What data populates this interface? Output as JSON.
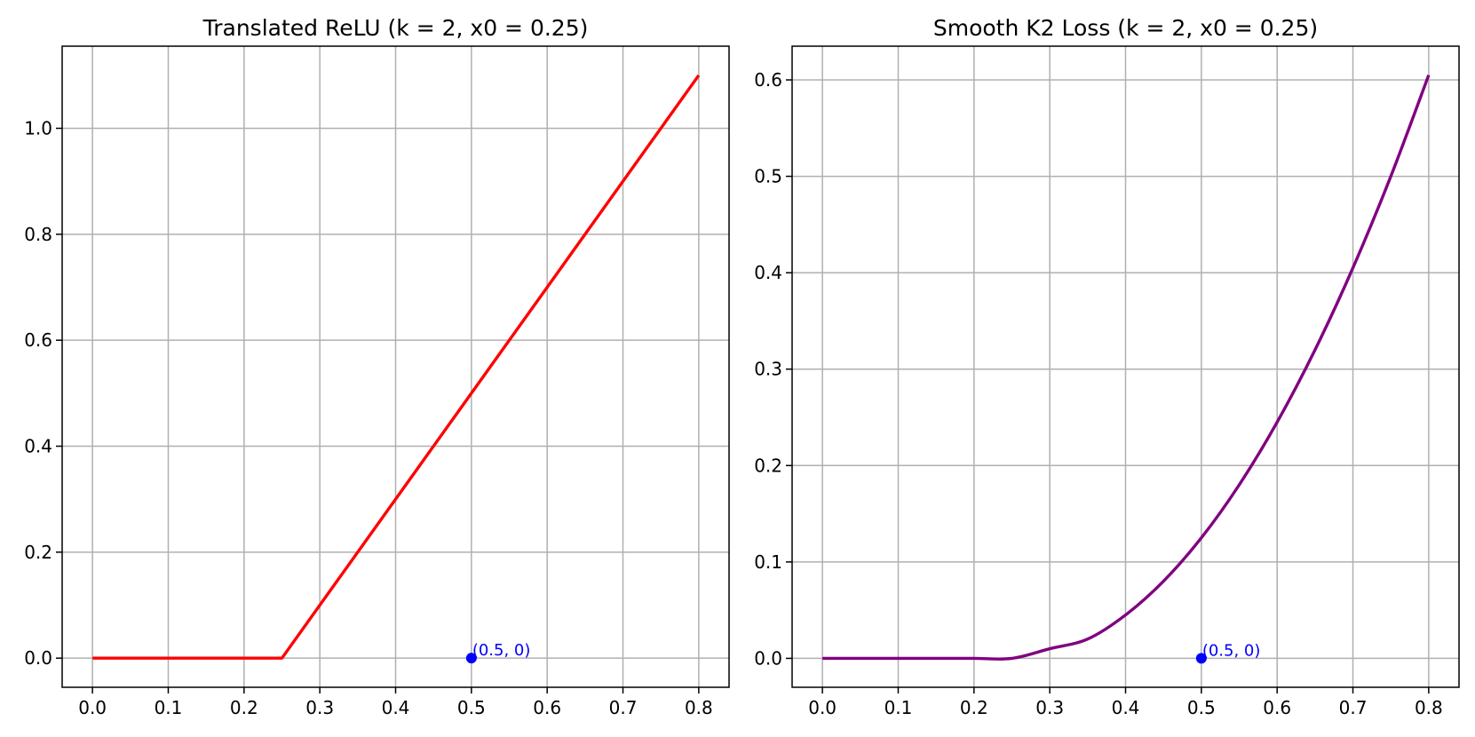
{
  "chart_data": [
    {
      "type": "line",
      "title": "Translated ReLU (k = 2, x0 = 0.25)",
      "xlabel": "",
      "ylabel": "",
      "xlim": [
        -0.04,
        0.84
      ],
      "ylim": [
        -0.055,
        1.155
      ],
      "grid": true,
      "x_ticks": [
        0.0,
        0.1,
        0.2,
        0.3,
        0.4,
        0.5,
        0.6,
        0.7,
        0.8
      ],
      "x_tick_labels": [
        "0.0",
        "0.1",
        "0.2",
        "0.3",
        "0.4",
        "0.5",
        "0.6",
        "0.7",
        "0.8"
      ],
      "y_ticks": [
        0.0,
        0.2,
        0.4,
        0.6,
        0.8,
        1.0
      ],
      "y_tick_labels": [
        "0.0",
        "0.2",
        "0.4",
        "0.6",
        "0.8",
        "1.0"
      ],
      "series": [
        {
          "color": "#ff0000",
          "x": [
            0.0,
            0.25,
            0.8
          ],
          "y": [
            0.0,
            0.0,
            1.1
          ]
        }
      ],
      "points": [
        {
          "x": 0.5,
          "y": 0.0,
          "label": "(0.5, 0)",
          "color": "#0000ff"
        }
      ]
    },
    {
      "type": "line",
      "title": "Smooth K2 Loss (k = 2, x0 = 0.25)",
      "xlabel": "",
      "ylabel": "",
      "xlim": [
        -0.04,
        0.84
      ],
      "ylim": [
        -0.03,
        0.635
      ],
      "grid": true,
      "x_ticks": [
        0.0,
        0.1,
        0.2,
        0.3,
        0.4,
        0.5,
        0.6,
        0.7,
        0.8
      ],
      "x_tick_labels": [
        "0.0",
        "0.1",
        "0.2",
        "0.3",
        "0.4",
        "0.5",
        "0.6",
        "0.7",
        "0.8"
      ],
      "y_ticks": [
        0.0,
        0.1,
        0.2,
        0.3,
        0.4,
        0.5,
        0.6
      ],
      "y_tick_labels": [
        "0.0",
        "0.1",
        "0.2",
        "0.3",
        "0.4",
        "0.5",
        "0.6"
      ],
      "series": [
        {
          "color": "#800080",
          "x": [
            0.0,
            0.05,
            0.1,
            0.15,
            0.2,
            0.25,
            0.3,
            0.35,
            0.4,
            0.45,
            0.5,
            0.55,
            0.6,
            0.65,
            0.7,
            0.75,
            0.8
          ],
          "y": [
            0.0,
            0.0,
            0.0,
            0.0,
            0.0,
            0.0,
            0.01,
            0.02,
            0.045,
            0.08,
            0.125,
            0.18,
            0.245,
            0.32,
            0.405,
            0.5,
            0.605
          ]
        }
      ],
      "points": [
        {
          "x": 0.5,
          "y": 0.0,
          "label": "(0.5, 0)",
          "color": "#0000ff"
        }
      ]
    }
  ]
}
